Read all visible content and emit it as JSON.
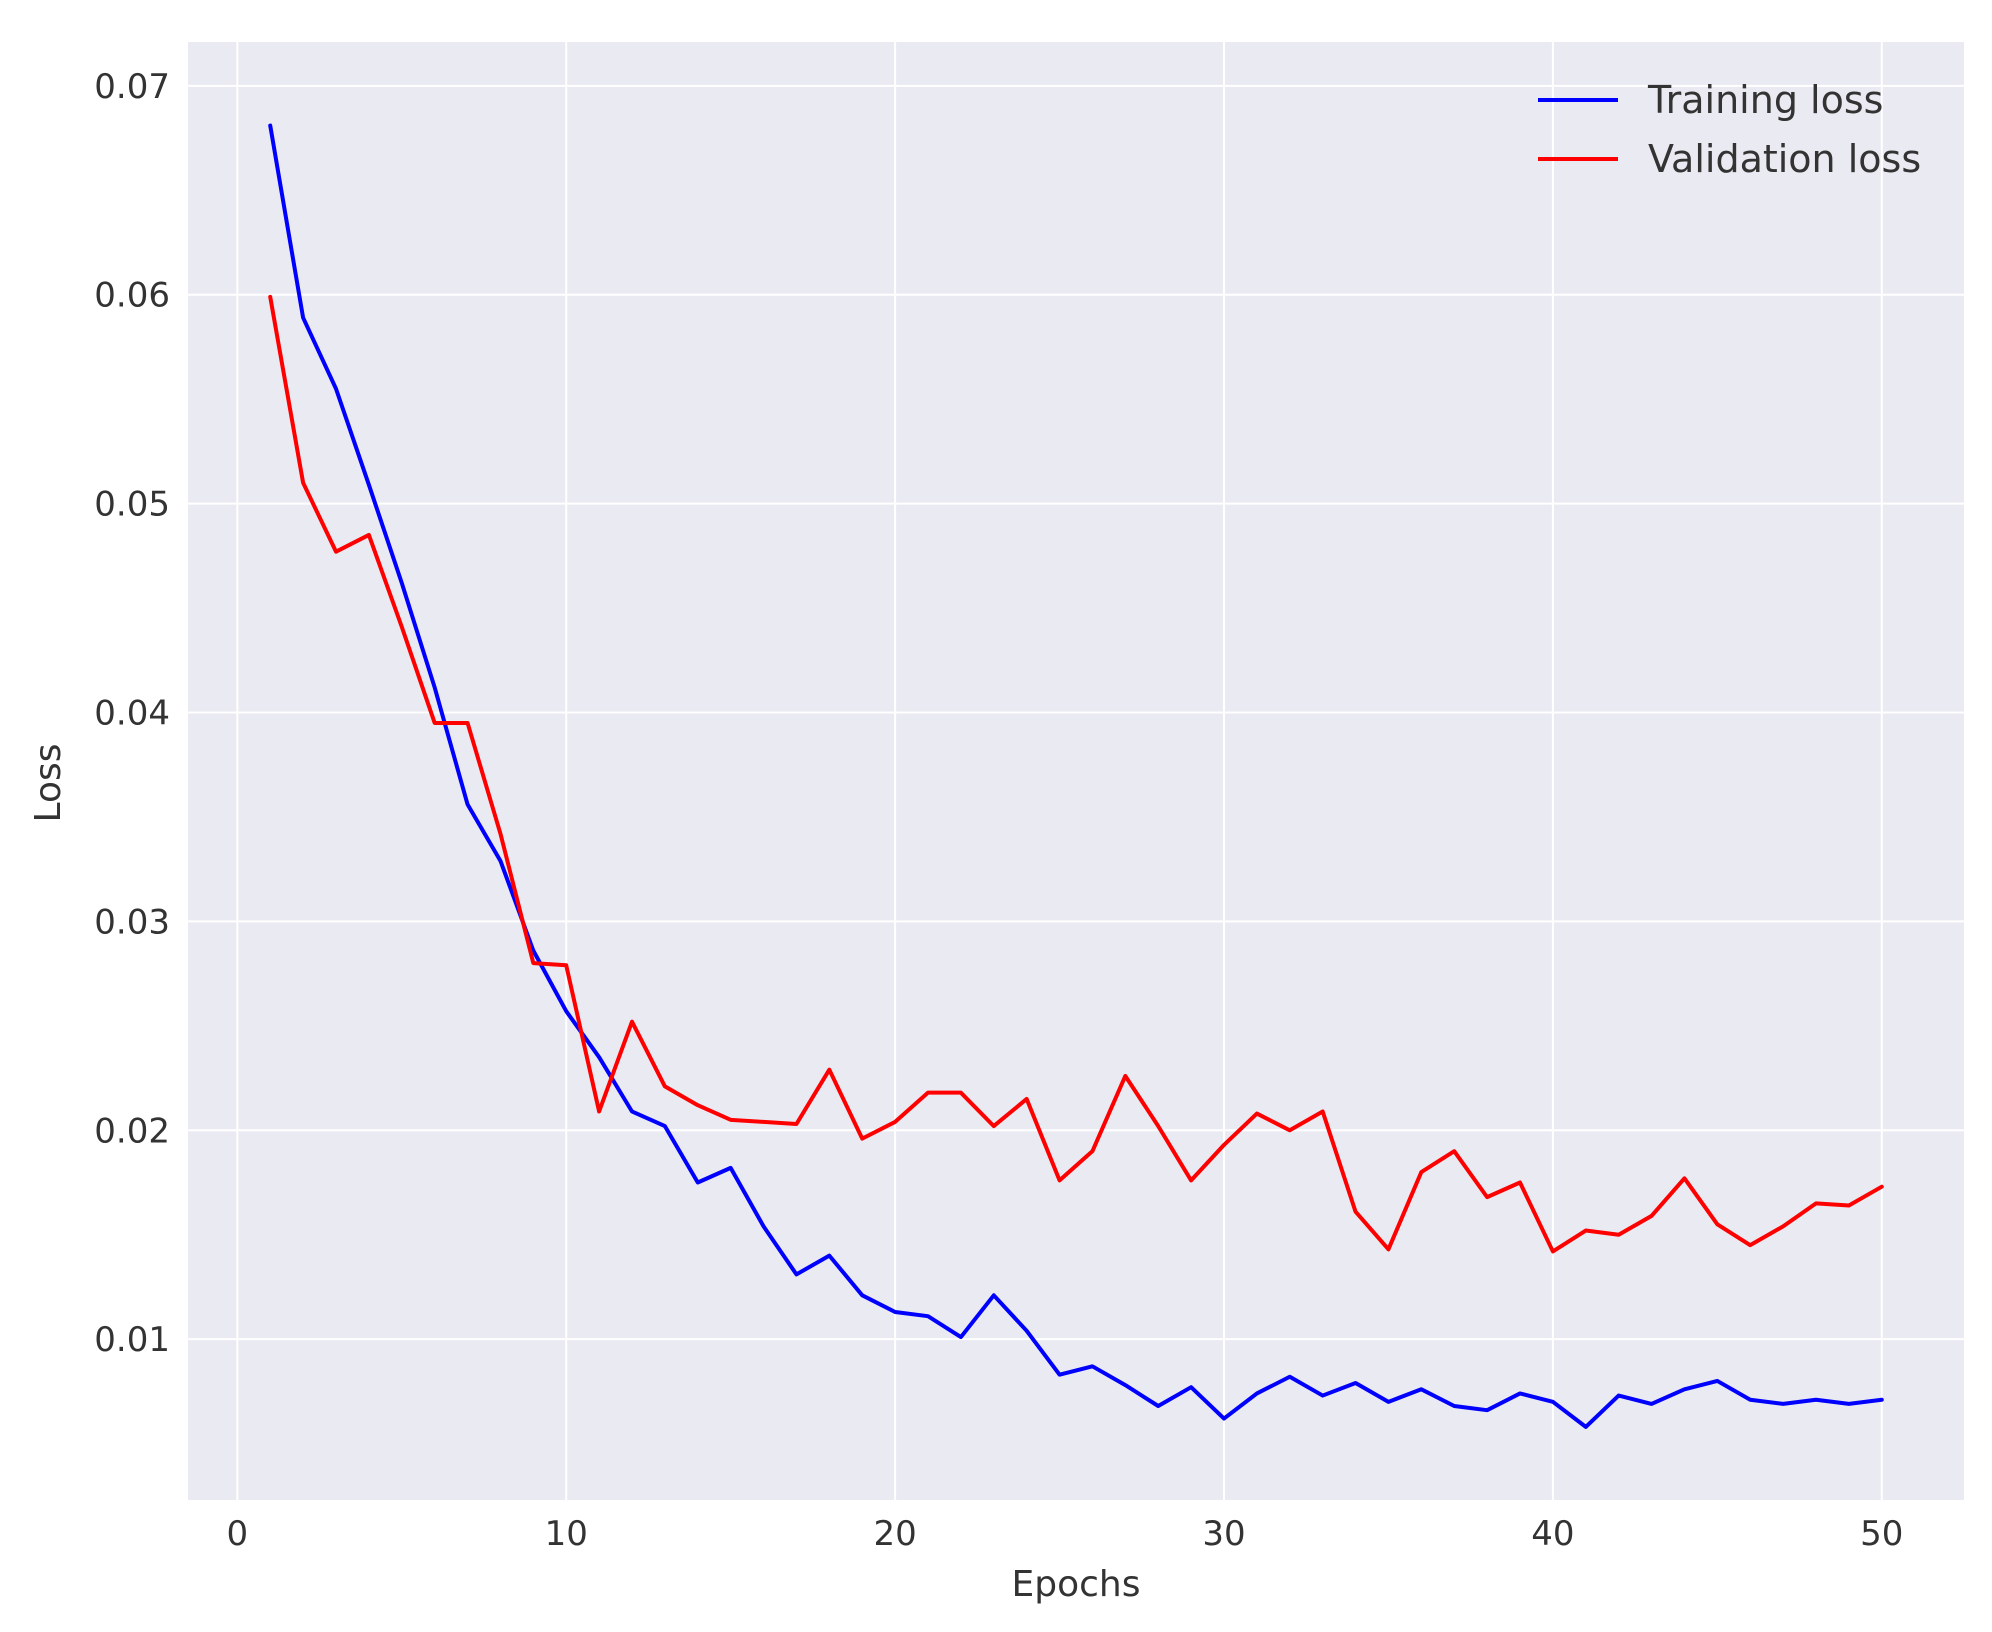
{
  "chart_data": {
    "type": "line",
    "xlabel": "Epochs",
    "ylabel": "Loss",
    "xlim": [
      -1.5,
      52.5
    ],
    "ylim": [
      0.0023,
      0.0721
    ],
    "xticks": [
      0,
      10,
      20,
      30,
      40,
      50
    ],
    "xtick_labels": [
      "0",
      "10",
      "20",
      "30",
      "40",
      "50"
    ],
    "yticks": [
      0.01,
      0.02,
      0.03,
      0.04,
      0.05,
      0.06,
      0.07
    ],
    "ytick_labels": [
      "0.01",
      "0.02",
      "0.03",
      "0.04",
      "0.05",
      "0.06",
      "0.07"
    ],
    "grid": true,
    "background": "#eaeaf2",
    "legend_position": "top-right",
    "x": [
      1,
      2,
      3,
      4,
      5,
      6,
      7,
      8,
      9,
      10,
      11,
      12,
      13,
      14,
      15,
      16,
      17,
      18,
      19,
      20,
      21,
      22,
      23,
      24,
      25,
      26,
      27,
      28,
      29,
      30,
      31,
      32,
      33,
      34,
      35,
      36,
      37,
      38,
      39,
      40,
      41,
      42,
      43,
      44,
      45,
      46,
      47,
      48,
      49,
      50
    ],
    "series": [
      {
        "name": "Training loss",
        "color": "#0000ff",
        "values": [
          0.0681,
          0.0589,
          0.0555,
          0.0509,
          0.0462,
          0.0412,
          0.0356,
          0.0329,
          0.0286,
          0.0257,
          0.0235,
          0.0209,
          0.0202,
          0.0175,
          0.0182,
          0.0154,
          0.0131,
          0.014,
          0.0121,
          0.0113,
          0.0111,
          0.0101,
          0.0121,
          0.0104,
          0.0083,
          0.0087,
          0.0078,
          0.0068,
          0.0077,
          0.0062,
          0.0074,
          0.0082,
          0.0073,
          0.0079,
          0.007,
          0.0076,
          0.0068,
          0.0066,
          0.0074,
          0.007,
          0.0058,
          0.0073,
          0.0069,
          0.0076,
          0.008,
          0.0071,
          0.0069,
          0.0071,
          0.0069,
          0.0071
        ]
      },
      {
        "name": "Validation loss",
        "color": "#ff0000",
        "values": [
          0.0599,
          0.051,
          0.0477,
          0.0485,
          0.0441,
          0.0395,
          0.0395,
          0.0342,
          0.028,
          0.0279,
          0.0209,
          0.0252,
          0.0221,
          0.0212,
          0.0205,
          0.0204,
          0.0203,
          0.0229,
          0.0196,
          0.0204,
          0.0218,
          0.0218,
          0.0202,
          0.0215,
          0.0176,
          0.019,
          0.0226,
          0.0202,
          0.0176,
          0.0193,
          0.0208,
          0.02,
          0.0209,
          0.0161,
          0.0143,
          0.018,
          0.019,
          0.0168,
          0.0175,
          0.0142,
          0.0152,
          0.015,
          0.0159,
          0.0177,
          0.0155,
          0.0145,
          0.0154,
          0.0165,
          0.0164,
          0.0173
        ]
      }
    ]
  }
}
